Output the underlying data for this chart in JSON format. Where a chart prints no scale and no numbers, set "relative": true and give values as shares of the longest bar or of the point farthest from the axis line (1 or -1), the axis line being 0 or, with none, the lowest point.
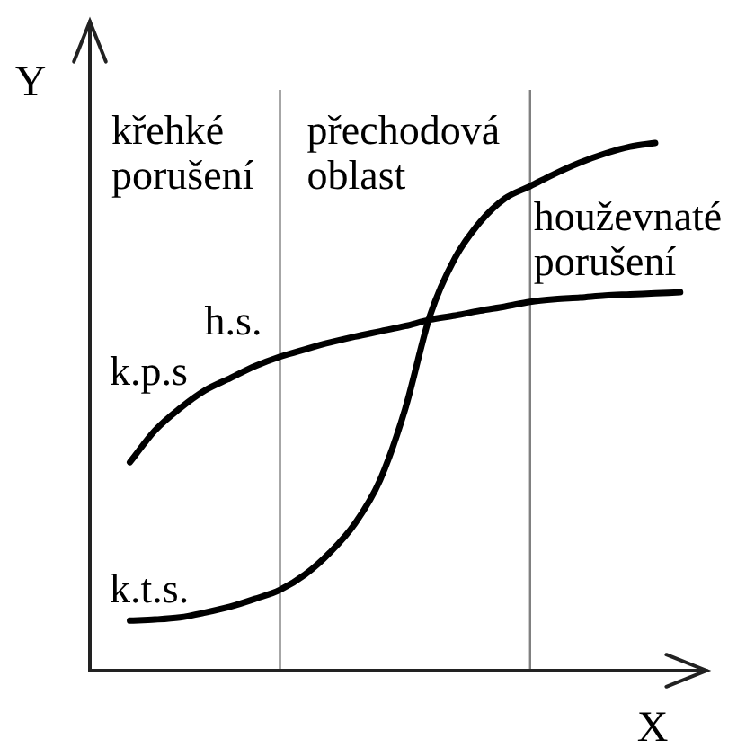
{
  "chart_data": {
    "type": "line",
    "relative": true,
    "xlabel": "X",
    "ylabel": "Y",
    "categories": [
      null,
      null,
      null,
      null,
      null,
      null,
      null,
      null,
      null,
      null,
      null,
      null,
      null,
      null,
      null,
      null,
      null,
      null,
      null,
      null,
      null,
      null,
      null
    ],
    "series": [
      {
        "name": "k.t.s.",
        "color": "#000000",
        "values": [
          0.095,
          0.097,
          0.101,
          0.11,
          0.121,
          0.136,
          0.153,
          0.182,
          0.224,
          0.279,
          0.361,
          0.495,
          0.673,
          0.782,
          0.85,
          0.895,
          0.918,
          0.942,
          0.963,
          0.98,
          0.993,
          1,
          null
        ]
      },
      {
        "name": "k.p.s",
        "color": "#000000",
        "values": [
          0.395,
          0.455,
          0.497,
          0.531,
          0.554,
          0.577,
          0.595,
          0.609,
          0.622,
          0.633,
          0.643,
          0.653,
          0.665,
          0.673,
          0.682,
          0.69,
          0.699,
          0.704,
          0.707,
          0.711,
          0.713,
          0.715,
          0.717
        ]
      }
    ],
    "annotations": [
      "křehké porušení",
      "přechodová oblast",
      "houževnaté porušení",
      "h.s."
    ],
    "marker": "none",
    "line_style": "solid",
    "tick_labels": false
  }
}
